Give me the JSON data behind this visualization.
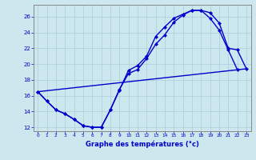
{
  "xlabel": "Graphe des températures (°c)",
  "background_color": "#cce8ee",
  "grid_color": "#aaccdd",
  "line_color": "#0000cc",
  "spine_color": "#888888",
  "xlim": [
    -0.5,
    23.5
  ],
  "ylim": [
    11.5,
    27.5
  ],
  "xticks": [
    0,
    1,
    2,
    3,
    4,
    5,
    6,
    7,
    8,
    9,
    10,
    11,
    12,
    13,
    14,
    15,
    16,
    17,
    18,
    19,
    20,
    21,
    22,
    23
  ],
  "yticks": [
    12,
    14,
    16,
    18,
    20,
    22,
    24,
    26
  ],
  "curve1_x": [
    0,
    1,
    2,
    3,
    4,
    5,
    6,
    7,
    8,
    9,
    10,
    11,
    12,
    13,
    14,
    15,
    16,
    17,
    18,
    19,
    20,
    21,
    22
  ],
  "curve1_y": [
    16.5,
    15.3,
    14.2,
    13.7,
    13.0,
    12.2,
    12.0,
    12.0,
    14.2,
    16.7,
    19.2,
    19.8,
    21.0,
    23.5,
    24.7,
    25.8,
    26.3,
    26.8,
    26.8,
    25.8,
    24.3,
    21.8,
    19.3
  ],
  "curve2_x": [
    0,
    1,
    2,
    3,
    4,
    5,
    6,
    7,
    8,
    9,
    10,
    11,
    12,
    13,
    14,
    15,
    16,
    17,
    18,
    19,
    20,
    21,
    22,
    23
  ],
  "curve2_y": [
    16.5,
    15.3,
    14.2,
    13.7,
    13.0,
    12.2,
    12.0,
    12.0,
    14.2,
    16.8,
    18.8,
    19.3,
    20.7,
    22.5,
    23.7,
    25.3,
    26.2,
    26.8,
    26.8,
    26.5,
    25.2,
    22.0,
    21.8,
    19.4
  ],
  "curve3_x": [
    0,
    23
  ],
  "curve3_y": [
    16.5,
    19.4
  ],
  "markersize": 2.5,
  "linewidth": 1.0
}
